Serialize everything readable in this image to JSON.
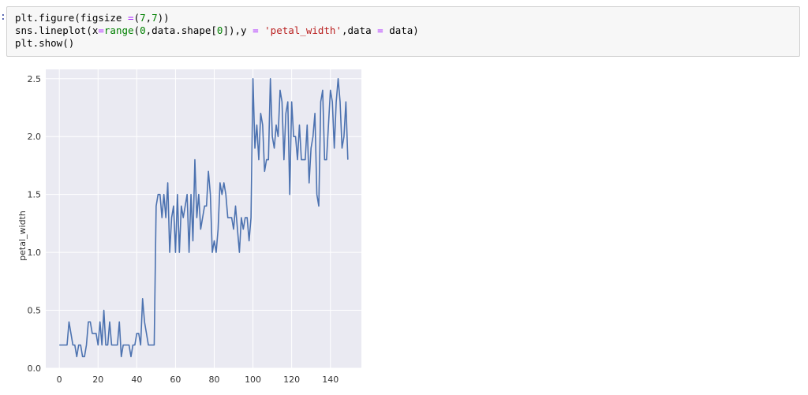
{
  "cell": {
    "prompt": ":",
    "lines": [
      {
        "parts": [
          {
            "t": "plt.figure(figsize ",
            "c": "kw"
          },
          {
            "t": "=",
            "c": "op"
          },
          {
            "t": "(",
            "c": "kw"
          },
          {
            "t": "7",
            "c": "num"
          },
          {
            "t": ",",
            "c": "kw"
          },
          {
            "t": "7",
            "c": "num"
          },
          {
            "t": "))",
            "c": "kw"
          }
        ]
      },
      {
        "parts": [
          {
            "t": "sns.lineplot(x",
            "c": "kw"
          },
          {
            "t": "=",
            "c": "op"
          },
          {
            "t": "range",
            "c": "bi"
          },
          {
            "t": "(",
            "c": "kw"
          },
          {
            "t": "0",
            "c": "num"
          },
          {
            "t": ",data.shape[",
            "c": "kw"
          },
          {
            "t": "0",
            "c": "num"
          },
          {
            "t": "]),y ",
            "c": "kw"
          },
          {
            "t": "=",
            "c": "op"
          },
          {
            "t": " ",
            "c": "kw"
          },
          {
            "t": "'petal_width'",
            "c": "str"
          },
          {
            "t": ",data ",
            "c": "kw"
          },
          {
            "t": "=",
            "c": "op"
          },
          {
            "t": " data)",
            "c": "kw"
          }
        ]
      },
      {
        "parts": [
          {
            "t": "plt.show()",
            "c": "kw"
          }
        ]
      }
    ]
  },
  "chart_data": {
    "type": "line",
    "ylabel": "petal_width",
    "xlabel": "",
    "xlim": [
      -7,
      156
    ],
    "ylim": [
      0,
      2.58
    ],
    "xticks": [
      0,
      20,
      40,
      60,
      80,
      100,
      120,
      140
    ],
    "yticks": [
      0.0,
      0.5,
      1.0,
      1.5,
      2.0,
      2.5
    ],
    "ytick_labels": [
      "0.0",
      "0.5",
      "1.0",
      "1.5",
      "2.0",
      "2.5"
    ],
    "grid": true,
    "colors": {
      "background": "#eaeaf2",
      "line": "#4c72b0",
      "grid": "#ffffff"
    },
    "x_start": 0,
    "values": [
      0.2,
      0.2,
      0.2,
      0.2,
      0.2,
      0.4,
      0.3,
      0.2,
      0.2,
      0.1,
      0.2,
      0.2,
      0.1,
      0.1,
      0.2,
      0.4,
      0.4,
      0.3,
      0.3,
      0.3,
      0.2,
      0.4,
      0.2,
      0.5,
      0.2,
      0.2,
      0.4,
      0.2,
      0.2,
      0.2,
      0.2,
      0.4,
      0.1,
      0.2,
      0.2,
      0.2,
      0.2,
      0.1,
      0.2,
      0.2,
      0.3,
      0.3,
      0.2,
      0.6,
      0.4,
      0.3,
      0.2,
      0.2,
      0.2,
      0.2,
      1.4,
      1.5,
      1.5,
      1.3,
      1.5,
      1.3,
      1.6,
      1.0,
      1.3,
      1.4,
      1.0,
      1.5,
      1.0,
      1.4,
      1.3,
      1.4,
      1.5,
      1.0,
      1.5,
      1.1,
      1.8,
      1.3,
      1.5,
      1.2,
      1.3,
      1.4,
      1.4,
      1.7,
      1.5,
      1.0,
      1.1,
      1.0,
      1.2,
      1.6,
      1.5,
      1.6,
      1.5,
      1.3,
      1.3,
      1.3,
      1.2,
      1.4,
      1.2,
      1.0,
      1.3,
      1.2,
      1.3,
      1.3,
      1.1,
      1.3,
      2.5,
      1.9,
      2.1,
      1.8,
      2.2,
      2.1,
      1.7,
      1.8,
      1.8,
      2.5,
      2.0,
      1.9,
      2.1,
      2.0,
      2.4,
      2.3,
      1.8,
      2.2,
      2.3,
      1.5,
      2.3,
      2.0,
      2.0,
      1.8,
      2.1,
      1.8,
      1.8,
      1.8,
      2.1,
      1.6,
      1.9,
      2.0,
      2.2,
      1.5,
      1.4,
      2.3,
      2.4,
      1.8,
      1.8,
      2.1,
      2.4,
      2.3,
      1.9,
      2.3,
      2.5,
      2.3,
      1.9,
      2.0,
      2.3,
      1.8
    ]
  }
}
